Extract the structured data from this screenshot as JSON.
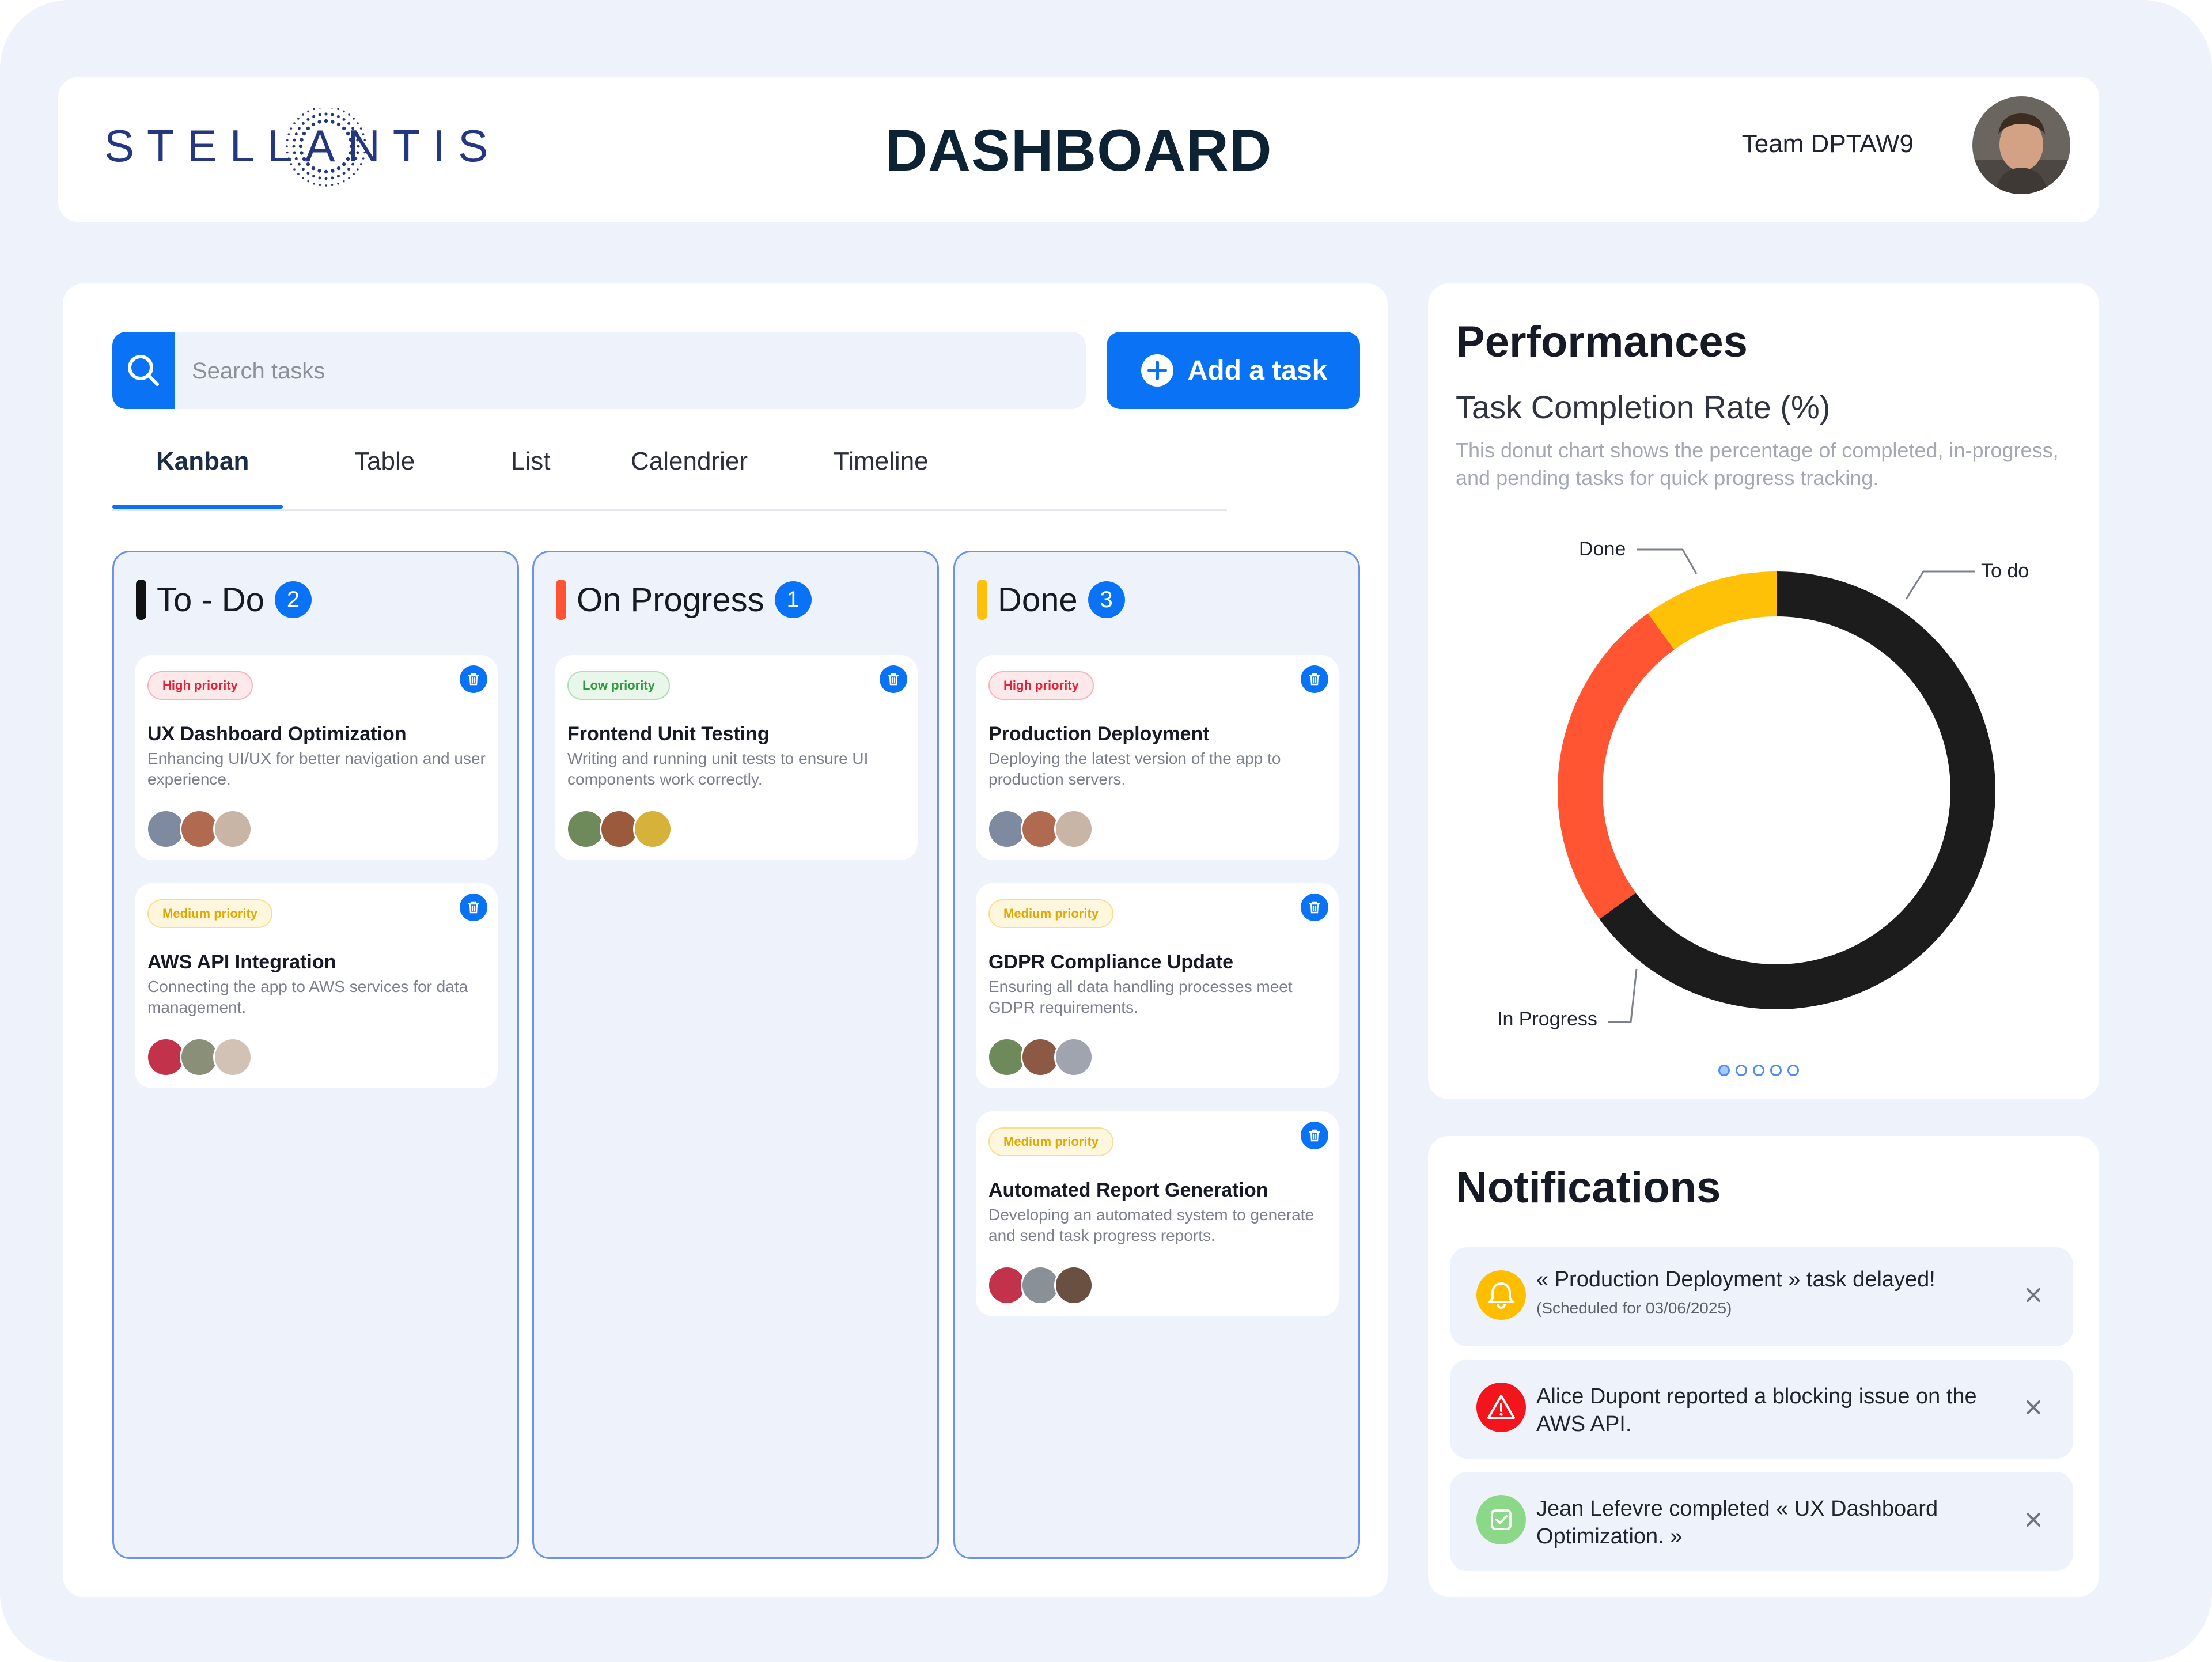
{
  "header": {
    "brand": "STELLANTIS",
    "title": "DASHBOARD",
    "team": "Team DPTAW9"
  },
  "toolbar": {
    "search_placeholder": "Search tasks",
    "add_label": "Add a task"
  },
  "tabs": [
    {
      "label": "Kanban",
      "active": true
    },
    {
      "label": "Table"
    },
    {
      "label": "List"
    },
    {
      "label": "Calendrier"
    },
    {
      "label": "Timeline"
    }
  ],
  "columns": [
    {
      "title": "To - Do",
      "count": "2",
      "color": "#111111",
      "tasks": [
        {
          "priority": "High priority",
          "title": "UX Dashboard Optimization",
          "desc": "Enhancing UI/UX for better navigation and user experience."
        },
        {
          "priority": "Medium priority",
          "title": "AWS API Integration",
          "desc": "Connecting the app to AWS services for data management."
        }
      ]
    },
    {
      "title": "On Progress",
      "count": "1",
      "color": "#ff5533",
      "tasks": [
        {
          "priority": "Low priority",
          "title": "Frontend Unit Testing",
          "desc": "Writing and running unit tests to ensure UI components work correctly."
        }
      ]
    },
    {
      "title": "Done",
      "count": "3",
      "color": "#ffc107",
      "tasks": [
        {
          "priority": "High priority",
          "title": "Production Deployment",
          "desc": "Deploying the latest version of the app to production servers."
        },
        {
          "priority": "Medium priority",
          "title": "GDPR Compliance Update",
          "desc": "Ensuring all data handling processes meet GDPR requirements."
        },
        {
          "priority": "Medium priority",
          "title": "Automated Report Generation",
          "desc": "Developing an automated system to generate and send task progress reports."
        }
      ]
    }
  ],
  "performance": {
    "title": "Performances",
    "subtitle": "Task Completion Rate (%)",
    "description": "This donut chart shows the percentage of completed, in-progress, and pending tasks for quick progress tracking.",
    "pagination": {
      "total": 5,
      "current": 1
    }
  },
  "chart_data": {
    "type": "pie",
    "title": "Task Completion Rate (%)",
    "segments": [
      {
        "label": "To do",
        "value": 65,
        "color": "#1c1c1c"
      },
      {
        "label": "In Progress",
        "value": 25,
        "color": "#ff5533"
      },
      {
        "label": "Done",
        "value": 10,
        "color": "#ffc107"
      }
    ],
    "legend": "callout-labels"
  },
  "notifications": {
    "title": "Notifications",
    "items": [
      {
        "type": "warning",
        "icon": "bell-icon",
        "color": "#ffbd00",
        "text": "« Production Deployment » task delayed!",
        "sub": "(Scheduled for 03/06/2025)"
      },
      {
        "type": "error",
        "icon": "alert-triangle-icon",
        "color": "#f2161c",
        "text": "Alice Dupont reported a blocking issue on the AWS API.",
        "sub": ""
      },
      {
        "type": "success",
        "icon": "check-square-icon",
        "color": "#8bd888",
        "text": "Jean Lefevre completed « UX Dashboard Optimization. »",
        "sub": ""
      }
    ]
  }
}
